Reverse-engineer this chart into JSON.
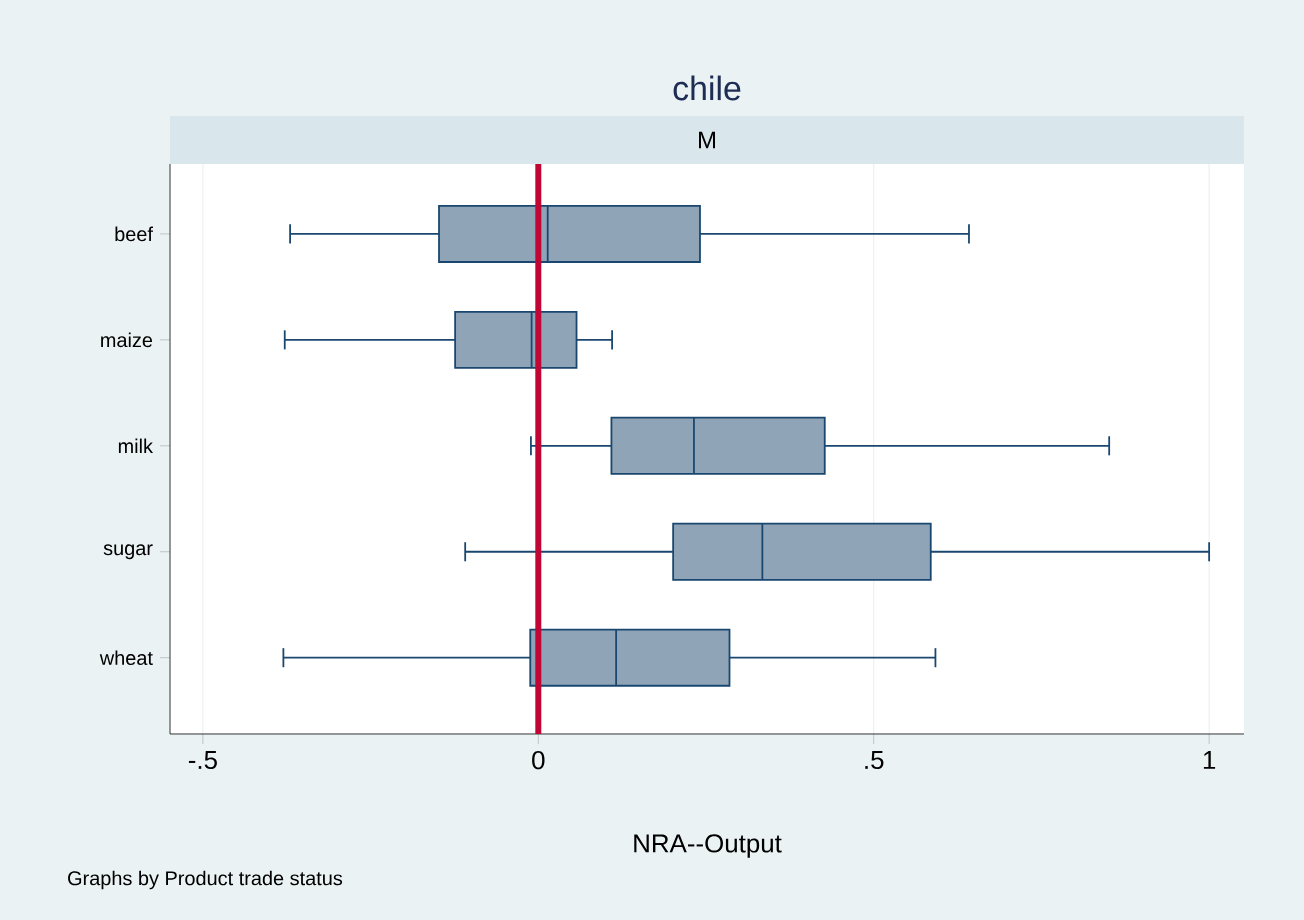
{
  "chart_data": {
    "type": "box",
    "title": "chile",
    "subtitle": "M",
    "xlabel": "NRA--Output",
    "orientation": "horizontal",
    "categories": [
      "beef",
      "maize",
      "milk",
      "sugar",
      "wheat"
    ],
    "color": "#90a4b8",
    "boxes": [
      {
        "low": -0.37,
        "q1": -0.148,
        "median": 0.014,
        "q3": 0.241,
        "high": 0.642
      },
      {
        "low": -0.378,
        "q1": -0.124,
        "median": -0.01,
        "q3": 0.057,
        "high": 0.11
      },
      {
        "low": -0.011,
        "q1": 0.109,
        "median": 0.232,
        "q3": 0.427,
        "high": 0.851
      },
      {
        "low": -0.109,
        "q1": 0.201,
        "median": 0.334,
        "q3": 0.585,
        "high": 1.0
      },
      {
        "low": -0.38,
        "q1": -0.012,
        "median": 0.116,
        "q3": 0.285,
        "high": 0.592
      }
    ],
    "xlim": [
      -0.549,
      1.052
    ],
    "xticks": [
      {
        "value": -0.5,
        "label": "-.5"
      },
      0,
      {
        "value": 0.5,
        "label": ".5"
      },
      1
    ],
    "ref_lines": [
      {
        "axis": "x",
        "value": 0,
        "color": "#c10534"
      }
    ],
    "grid": "x",
    "annotations": [
      "Graphs by Product trade status"
    ]
  }
}
